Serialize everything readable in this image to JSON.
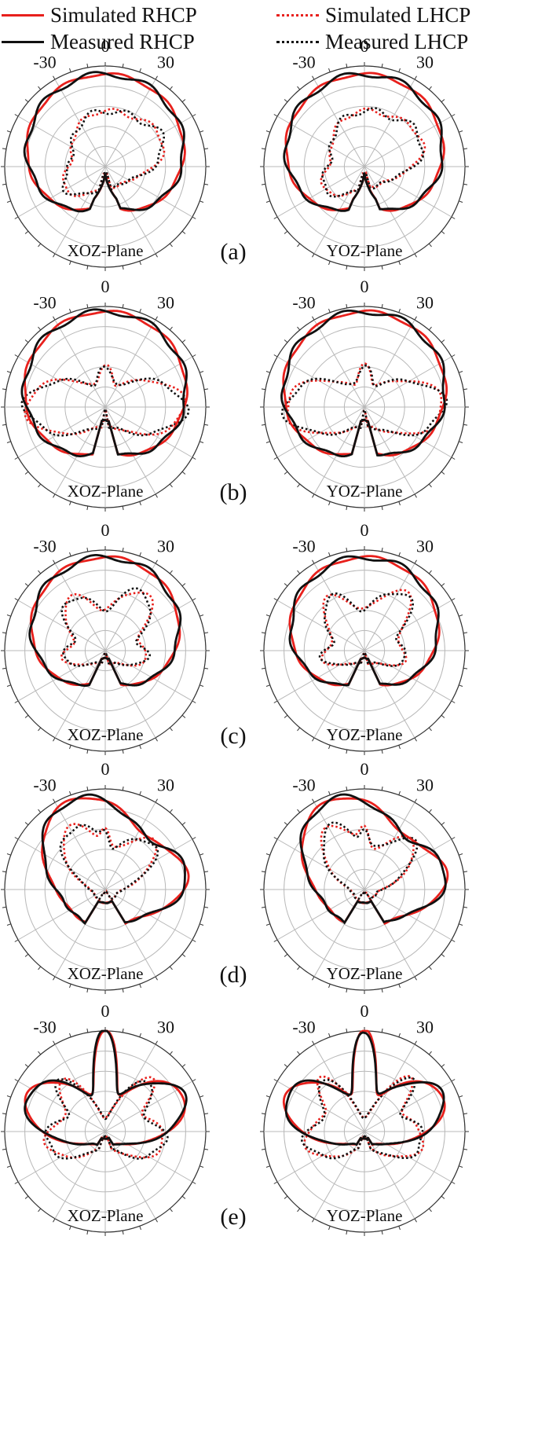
{
  "legend": {
    "sim_rhcp": "Simulated RHCP",
    "meas_rhcp": "Measured RHCP",
    "sim_lhcp": "Simulated LHCP",
    "meas_lhcp": "Measured LHCP"
  },
  "colors": {
    "simulated": "#e8201c",
    "measured": "#111111",
    "grid": "#b8b8b8"
  },
  "chart_data": {
    "type": "polar",
    "angle_tick_labels": [
      "-30",
      "0",
      "30"
    ],
    "grid": true,
    "legend_placement": "top",
    "panels": [
      {
        "label": "(a)",
        "plane_labels": [
          "XOZ-Plane",
          "YOZ-Plane"
        ]
      },
      {
        "label": "(b)",
        "plane_labels": [
          "XOZ-Plane",
          "YOZ-Plane"
        ]
      },
      {
        "label": "(c)",
        "plane_labels": [
          "XOZ-Plane",
          "YOZ-Plane"
        ]
      },
      {
        "label": "(d)",
        "plane_labels": [
          "XOZ-Plane",
          "YOZ-Plane"
        ]
      },
      {
        "label": "(e)",
        "plane_labels": [
          "XOZ-Plane",
          "YOZ-Plane"
        ]
      }
    ],
    "series": [
      {
        "name": "Simulated RHCP",
        "color": "#e8201c",
        "line": "solid"
      },
      {
        "name": "Measured RHCP",
        "color": "#111111",
        "line": "solid"
      },
      {
        "name": "Simulated LHCP",
        "color": "#e8201c",
        "line": "dotted"
      },
      {
        "name": "Measured LHCP",
        "color": "#111111",
        "line": "dotted"
      }
    ]
  }
}
